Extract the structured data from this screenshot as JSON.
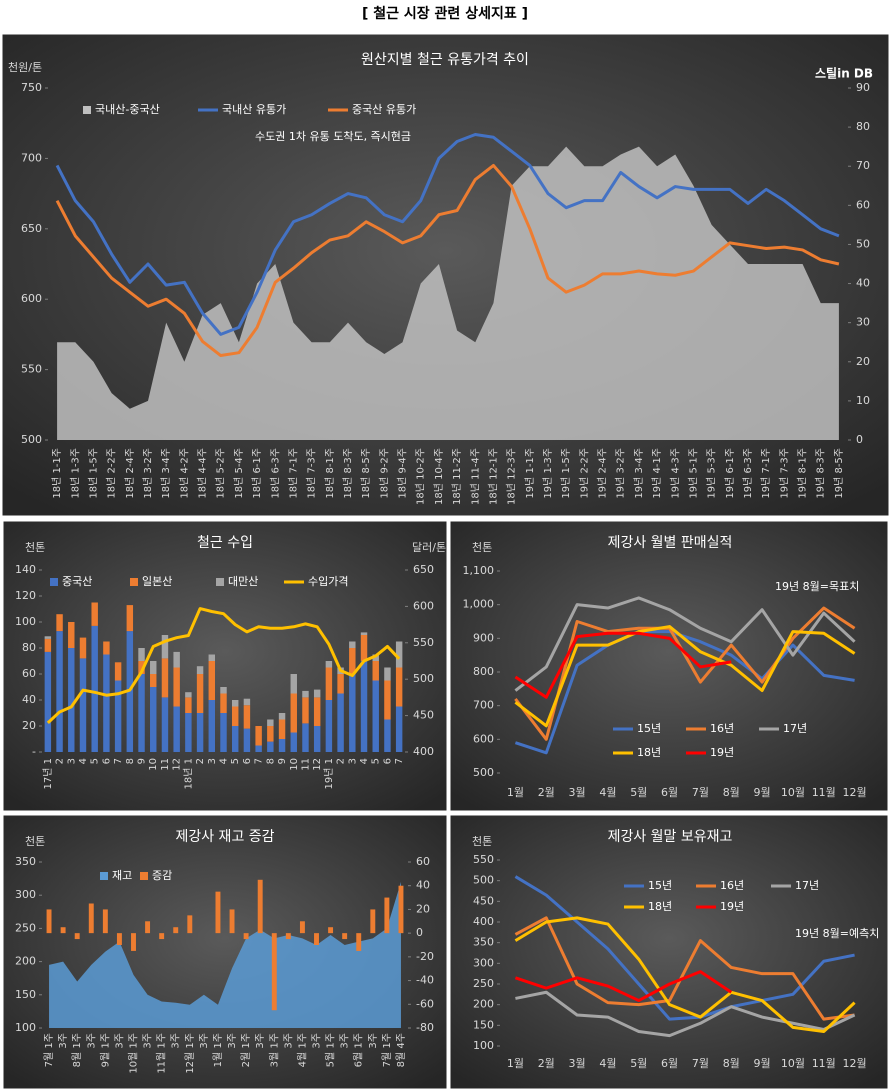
{
  "title": "[ 철근 시장 관련 상세지표 ]",
  "chart_data": [
    {
      "type": "combo",
      "title": "원산지별 철근 유통가격 추이",
      "y_label": "천원/톤",
      "annotation": "수도권 1차 유통 도착도, 즉시현금",
      "logo": "스틸in DB",
      "categories": [
        "18년 1-1주",
        "18년 1-3주",
        "18년 1-5주",
        "18년 2-2주",
        "18년 2-4주",
        "18년 3-2주",
        "18년 3-4주",
        "18년 4-2주",
        "18년 4-4주",
        "18년 5-2주",
        "18년 5-4주",
        "18년 6-1주",
        "18년 6-3주",
        "18년 7-1주",
        "18년 7-3주",
        "18년 8-1주",
        "18년 8-3주",
        "18년 8-5주",
        "18년 9-2주",
        "18년 9-4주",
        "18년 10-2주",
        "18년 10-4주",
        "18년 11-2주",
        "18년 11-4주",
        "18년 12-1주",
        "18년 12-3주",
        "19년 1-1주",
        "19년 1-3주",
        "19년 1-5주",
        "19년 2-2주",
        "19년 2-4주",
        "19년 3-2주",
        "19년 3-4주",
        "19년 4-1주",
        "19년 4-3주",
        "19년 5-1주",
        "19년 5-3주",
        "19년 6-1주",
        "19년 6-3주",
        "19년 7-1주",
        "19년 7-3주",
        "19년 8-1주",
        "19년 8-3주",
        "19년 8-5주"
      ],
      "series": [
        {
          "name": "국내산-중국산",
          "type": "area",
          "axis": "y2",
          "color": "#bfbfbf",
          "values": [
            25,
            25,
            20,
            12,
            8,
            10,
            30,
            20,
            32,
            35,
            25,
            40,
            45,
            30,
            25,
            25,
            30,
            25,
            22,
            25,
            40,
            45,
            28,
            25,
            35,
            65,
            70,
            70,
            75,
            70,
            70,
            73,
            75,
            70,
            73,
            65,
            55,
            50,
            45,
            45,
            45,
            45,
            35,
            35
          ]
        },
        {
          "name": "국내산 유통가",
          "type": "line",
          "color": "#4472c4",
          "values": [
            695,
            670,
            655,
            632,
            612,
            625,
            610,
            612,
            590,
            575,
            580,
            605,
            635,
            655,
            660,
            668,
            675,
            672,
            660,
            655,
            670,
            700,
            712,
            717,
            715,
            705,
            695,
            675,
            665,
            670,
            670,
            690,
            680,
            672,
            680,
            678,
            678,
            678,
            668,
            678,
            670,
            660,
            650,
            645
          ]
        },
        {
          "name": "중국산 유통가",
          "type": "line",
          "color": "#ed7d31",
          "values": [
            670,
            645,
            630,
            615,
            605,
            595,
            600,
            590,
            570,
            560,
            562,
            580,
            612,
            622,
            633,
            642,
            645,
            655,
            648,
            640,
            645,
            660,
            663,
            685,
            695,
            680,
            650,
            615,
            605,
            610,
            618,
            618,
            620,
            618,
            617,
            620,
            630,
            640,
            638,
            636,
            637,
            635,
            628,
            625
          ]
        }
      ],
      "ylim": [
        500,
        750
      ],
      "yticks": [
        500,
        550,
        600,
        650,
        700,
        750
      ],
      "y2lim": [
        0,
        90
      ],
      "y2ticks": [
        0,
        10,
        20,
        30,
        40,
        50,
        60,
        70,
        80,
        90
      ]
    },
    {
      "type": "combo",
      "title": "철근 수입",
      "y_label": "천톤",
      "y2_label": "달러/톤",
      "categories": [
        "17년 1",
        "2",
        "3",
        "4",
        "5",
        "6",
        "7",
        "8",
        "9",
        "10",
        "11",
        "12",
        "18년 1",
        "2",
        "3",
        "4",
        "5",
        "6",
        "7",
        "8",
        "9",
        "10",
        "11",
        "12",
        "19년 1",
        "2",
        "3",
        "4",
        "5",
        "6",
        "7"
      ],
      "series": [
        {
          "name": "중국산",
          "type": "bar",
          "color": "#4472c4",
          "values": [
            77,
            93,
            80,
            72,
            97,
            75,
            55,
            93,
            60,
            50,
            42,
            35,
            30,
            30,
            40,
            30,
            20,
            18,
            5,
            8,
            10,
            15,
            22,
            20,
            40,
            45,
            60,
            70,
            55,
            25,
            35
          ]
        },
        {
          "name": "일본산",
          "type": "bar",
          "color": "#ed7d31",
          "values": [
            10,
            13,
            20,
            16,
            18,
            10,
            14,
            20,
            10,
            10,
            30,
            30,
            12,
            30,
            30,
            15,
            15,
            18,
            15,
            12,
            15,
            30,
            20,
            22,
            25,
            15,
            20,
            20,
            15,
            30,
            30
          ]
        },
        {
          "name": "대만산",
          "type": "bar",
          "color": "#a5a5a5",
          "values": [
            2,
            0,
            0,
            0,
            0,
            0,
            0,
            0,
            10,
            10,
            18,
            12,
            4,
            6,
            5,
            5,
            5,
            5,
            0,
            5,
            5,
            15,
            5,
            6,
            5,
            5,
            5,
            2,
            5,
            10,
            20
          ]
        },
        {
          "name": "수입가격",
          "type": "line",
          "axis": "y2",
          "color": "#ffc000",
          "values": [
            440,
            455,
            462,
            485,
            482,
            478,
            480,
            485,
            510,
            545,
            552,
            557,
            560,
            597,
            593,
            590,
            575,
            565,
            572,
            570,
            570,
            572,
            576,
            572,
            548,
            512,
            505,
            525,
            532,
            545,
            528
          ]
        }
      ],
      "ylim": [
        0,
        140
      ],
      "yticks": [
        {
          "value": 0,
          "label": "-"
        },
        20,
        40,
        60,
        80,
        100,
        120,
        140
      ],
      "y2lim": [
        400,
        650
      ],
      "y2ticks": [
        400,
        450,
        500,
        550,
        600,
        650
      ]
    },
    {
      "type": "line",
      "title": "제강사 월별 판매실적",
      "y_label": "천톤",
      "annotation": "19년 8월=목표치",
      "categories": [
        "1월",
        "2월",
        "3월",
        "4월",
        "5월",
        "6월",
        "7월",
        "8월",
        "9월",
        "10월",
        "11월",
        "12월"
      ],
      "series": [
        {
          "name": "15년",
          "color": "#4472c4",
          "values": [
            590,
            560,
            820,
            880,
            920,
            920,
            890,
            850,
            780,
            880,
            790,
            775
          ]
        },
        {
          "name": "16년",
          "color": "#ed7d31",
          "values": [
            720,
            600,
            950,
            920,
            930,
            930,
            770,
            880,
            770,
            900,
            990,
            930
          ]
        },
        {
          "name": "17년",
          "color": "#a5a5a5",
          "values": [
            745,
            815,
            1000,
            990,
            1020,
            985,
            930,
            890,
            985,
            850,
            975,
            890
          ]
        },
        {
          "name": "18년",
          "color": "#ffc000",
          "values": [
            710,
            640,
            880,
            880,
            920,
            935,
            860,
            820,
            745,
            920,
            915,
            855
          ]
        },
        {
          "name": "19년",
          "color": "#ff0000",
          "values": [
            785,
            725,
            905,
            915,
            915,
            900,
            815,
            830,
            null,
            null,
            null,
            null
          ]
        }
      ],
      "ylim": [
        500,
        1100
      ],
      "yticks": [
        500,
        600,
        700,
        800,
        900,
        {
          "value": 1000,
          "label": "1,000"
        },
        {
          "value": 1100,
          "label": "1,100"
        }
      ]
    },
    {
      "type": "combo",
      "title": "제강사 재고 증감",
      "y_label": "천톤",
      "categories": [
        "7월 1주",
        "3주",
        "8월 1주",
        "3주",
        "9월 1주",
        "3주",
        "10월 1주",
        "3주",
        "11월 1주",
        "3주",
        "12월 1주",
        "3주",
        "1월 1주",
        "3주",
        "2월 1주",
        "3주",
        "3월 1주",
        "3주",
        "4월 1주",
        "3주",
        "5월 1주",
        "3주",
        "6월 1주",
        "3주",
        "7월 1주",
        "8월 4주"
      ],
      "series": [
        {
          "name": "재고",
          "type": "area",
          "color": "#5b9bd5",
          "values": [
            195,
            200,
            170,
            195,
            215,
            230,
            180,
            150,
            140,
            138,
            135,
            150,
            135,
            190,
            235,
            248,
            235,
            240,
            235,
            225,
            240,
            225,
            230,
            235,
            250,
            320
          ]
        },
        {
          "name": "증감",
          "type": "bar",
          "axis": "y2",
          "color": "#ed7d31",
          "values": [
            20,
            5,
            -5,
            25,
            20,
            -10,
            -15,
            10,
            -5,
            5,
            15,
            0,
            35,
            20,
            -5,
            45,
            -65,
            -5,
            10,
            -10,
            5,
            -5,
            -15,
            20,
            30,
            40
          ]
        }
      ],
      "ylim": [
        100,
        350
      ],
      "yticks": [
        100,
        150,
        200,
        250,
        300,
        350
      ],
      "y2lim": [
        -80,
        60
      ],
      "y2ticks": [
        -80,
        -60,
        -40,
        -20,
        0,
        20,
        40,
        60
      ]
    },
    {
      "type": "line",
      "title": "제강사 월말 보유재고",
      "y_label": "천톤",
      "annotation": "19년 8월=예측치",
      "categories": [
        "1월",
        "2월",
        "3월",
        "4월",
        "5월",
        "6월",
        "7월",
        "8월",
        "9월",
        "10월",
        "11월",
        "12월"
      ],
      "series": [
        {
          "name": "15년",
          "color": "#4472c4",
          "values": [
            510,
            465,
            400,
            335,
            250,
            165,
            170,
            195,
            210,
            225,
            305,
            320
          ]
        },
        {
          "name": "16년",
          "color": "#ed7d31",
          "values": [
            370,
            410,
            250,
            205,
            200,
            210,
            355,
            290,
            275,
            275,
            165,
            175
          ]
        },
        {
          "name": "17년",
          "color": "#a5a5a5",
          "values": [
            215,
            230,
            175,
            170,
            135,
            125,
            155,
            195,
            170,
            155,
            140,
            175
          ]
        },
        {
          "name": "18년",
          "color": "#ffc000",
          "values": [
            355,
            400,
            410,
            395,
            310,
            200,
            170,
            230,
            210,
            145,
            135,
            205
          ]
        },
        {
          "name": "19년",
          "color": "#ff0000",
          "values": [
            265,
            240,
            265,
            245,
            210,
            250,
            280,
            230,
            null,
            null,
            null,
            null
          ]
        }
      ],
      "ylim": [
        100,
        550
      ],
      "yticks": [
        100,
        150,
        200,
        250,
        300,
        350,
        400,
        450,
        500,
        550
      ]
    }
  ]
}
